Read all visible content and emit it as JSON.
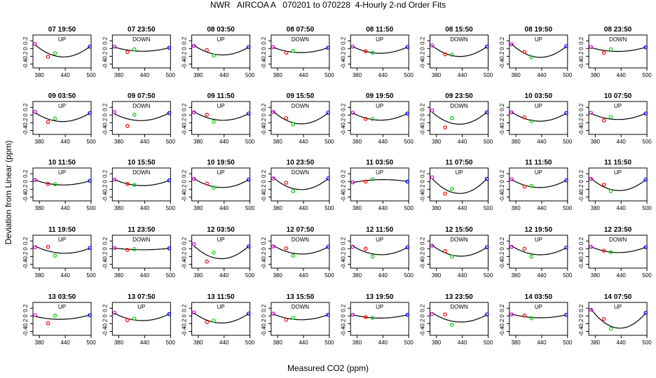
{
  "title": "NWR   AIRCOA A   070201 to 070228  4-Hourly 2-nd Order Fits",
  "xlabel": "Measured CO2 (ppm)",
  "ylabel": "Deviation from Linear (ppm)",
  "colors": {
    "std_low": "#cc00cc",
    "std_mid_red": "#ff0000",
    "std_mid_green": "#00cc00",
    "std_high": "#0000ff",
    "curve": "#000000"
  },
  "chart_data": {
    "type": "scatter",
    "layout": "5x8 panel grid",
    "xlim": [
      365,
      500
    ],
    "ylim": [
      -0.5,
      0.35
    ],
    "xticks": [
      380,
      440,
      500
    ],
    "xtick_labels": [
      "380",
      "440",
      "500"
    ],
    "yticks": [
      0.2,
      0,
      -0.2,
      -0.4
    ],
    "ytick_labels": [
      "0.2",
      "0",
      "-0.2",
      "-0.4"
    ],
    "standard_x": [
      370,
      400,
      416,
      497
    ],
    "panels": [
      {
        "time": "07 19:50",
        "dir": "UP",
        "y": [
          0.12,
          -0.21,
          -0.12,
          0.05
        ]
      },
      {
        "time": "07 23:50",
        "dir": "DOWN",
        "y": [
          0.05,
          -0.09,
          -0.02,
          0.02
        ]
      },
      {
        "time": "08 03:50",
        "dir": "UP",
        "y": [
          0.07,
          -0.04,
          -0.18,
          0.04
        ]
      },
      {
        "time": "08 07:50",
        "dir": "DOWN",
        "y": [
          0.04,
          -0.11,
          -0.06,
          0.02
        ]
      },
      {
        "time": "08 11:50",
        "dir": "UP",
        "y": [
          0.05,
          -0.07,
          -0.11,
          0.04
        ]
      },
      {
        "time": "08 15:50",
        "dir": "DOWN",
        "y": [
          0.08,
          -0.15,
          -0.16,
          0.05
        ]
      },
      {
        "time": "08 19:50",
        "dir": "UP",
        "y": [
          0.11,
          -0.09,
          -0.22,
          0.06
        ]
      },
      {
        "time": "08 23:50",
        "dir": "DOWN",
        "y": [
          0.04,
          -0.11,
          -0.02,
          0.03
        ]
      },
      {
        "time": "09 03:50",
        "dir": "UP",
        "y": [
          0.08,
          -0.18,
          -0.09,
          0.05
        ]
      },
      {
        "time": "09 07:50",
        "dir": "DOWN",
        "y": [
          0.08,
          -0.28,
          0.01,
          0.05
        ]
      },
      {
        "time": "09 11:50",
        "dir": "UP",
        "y": [
          0.07,
          0.01,
          -0.17,
          0.04
        ]
      },
      {
        "time": "09 15:50",
        "dir": "DOWN",
        "y": [
          0.08,
          -0.08,
          -0.24,
          0.06
        ]
      },
      {
        "time": "09 19:50",
        "dir": "UP",
        "y": [
          0.06,
          -0.1,
          -0.1,
          0.04
        ]
      },
      {
        "time": "09 23:50",
        "dir": "DOWN",
        "y": [
          0.12,
          -0.32,
          -0.08,
          0.07
        ]
      },
      {
        "time": "10 03:50",
        "dir": "UP",
        "y": [
          0.07,
          -0.06,
          -0.16,
          0.05
        ]
      },
      {
        "time": "10 07:50",
        "dir": "UP",
        "y": [
          0.06,
          -0.14,
          -0.05,
          0.04
        ]
      },
      {
        "time": "10 11:50",
        "dir": "UP",
        "y": [
          0.04,
          -0.06,
          -0.07,
          0.02
        ]
      },
      {
        "time": "10 15:50",
        "dir": "DOWN",
        "y": [
          0.05,
          -0.06,
          -0.09,
          0.03
        ]
      },
      {
        "time": "10 19:50",
        "dir": "UP",
        "y": [
          0.07,
          -0.05,
          -0.16,
          0.05
        ]
      },
      {
        "time": "10 23:50",
        "dir": "DOWN",
        "y": [
          0.08,
          -0.03,
          -0.25,
          0.08
        ]
      },
      {
        "time": "11 03:50",
        "dir": "UP",
        "y": [
          -0.02,
          0.0,
          0.06,
          0.0
        ]
      },
      {
        "time": "11 07:50",
        "dir": "UP",
        "y": [
          0.11,
          -0.31,
          -0.19,
          0.07
        ]
      },
      {
        "time": "11 11:50",
        "dir": "UP",
        "y": [
          0.06,
          -0.13,
          -0.11,
          0.03
        ]
      },
      {
        "time": "11 15:50",
        "dir": "UP",
        "y": [
          0.07,
          -0.08,
          -0.25,
          0.05
        ]
      },
      {
        "time": "11 19:50",
        "dir": "UP",
        "y": [
          0.04,
          0.05,
          -0.18,
          0.02
        ]
      },
      {
        "time": "11 23:50",
        "dir": "DOWN",
        "y": [
          0.02,
          -0.03,
          -0.01,
          0.01
        ]
      },
      {
        "time": "12 03:50",
        "dir": "UP",
        "y": [
          0.12,
          -0.33,
          -0.1,
          0.06
        ]
      },
      {
        "time": "12 07:50",
        "dir": "DOWN",
        "y": [
          0.06,
          0.01,
          -0.18,
          0.05
        ]
      },
      {
        "time": "12 11:50",
        "dir": "UP",
        "y": [
          0.05,
          0.0,
          -0.2,
          0.04
        ]
      },
      {
        "time": "12 15:50",
        "dir": "DOWN",
        "y": [
          0.08,
          -0.06,
          -0.2,
          0.04
        ]
      },
      {
        "time": "12 19:50",
        "dir": "UP",
        "y": [
          0.05,
          0.0,
          -0.2,
          0.03
        ]
      },
      {
        "time": "12 23:50",
        "dir": "DOWN",
        "y": [
          0.05,
          -0.05,
          -0.09,
          0.04
        ]
      },
      {
        "time": "13 03:50",
        "dir": "UP",
        "y": [
          0.02,
          -0.19,
          0.01,
          0.02
        ]
      },
      {
        "time": "13 07:50",
        "dir": "UP",
        "y": [
          0.08,
          -0.11,
          -0.07,
          0.05
        ]
      },
      {
        "time": "13 11:50",
        "dir": "UP",
        "y": [
          0.09,
          -0.16,
          -0.12,
          0.06
        ]
      },
      {
        "time": "13 15:50",
        "dir": "DOWN",
        "y": [
          0.06,
          -0.1,
          -0.05,
          0.03
        ]
      },
      {
        "time": "13 19:50",
        "dir": "UP",
        "y": [
          0.03,
          -0.03,
          -0.05,
          0.03
        ]
      },
      {
        "time": "13 23:50",
        "dir": "DOWN",
        "y": [
          0.05,
          0.04,
          -0.23,
          0.04
        ]
      },
      {
        "time": "14 03:50",
        "dir": "UP",
        "y": [
          0.04,
          0.01,
          -0.06,
          0.03
        ]
      },
      {
        "time": "14 07:50",
        "dir": "UP",
        "y": [
          0.16,
          -0.08,
          -0.33,
          0.08
        ]
      }
    ]
  }
}
